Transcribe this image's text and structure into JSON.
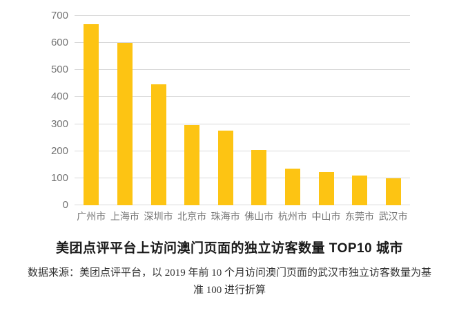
{
  "chart_data": {
    "type": "bar",
    "title": "美团点评平台上访问澳门页面的独立访客数量 TOP10 城市",
    "categories": [
      "广州市",
      "上海市",
      "深圳市",
      "北京市",
      "珠海市",
      "佛山市",
      "杭州市",
      "中山市",
      "东莞市",
      "武汉市"
    ],
    "values": [
      670,
      600,
      448,
      296,
      276,
      205,
      135,
      122,
      110,
      100
    ],
    "xlabel": "",
    "ylabel": "",
    "ylim": [
      0,
      700
    ],
    "ytick_step": 100,
    "grid": true,
    "legend_position": "none",
    "bar_color": "#FDC413"
  },
  "source_note": {
    "line1": "数据来源：美团点评平台，以 2019 年前 10 个月访问澳门页面的武汉市独立访客数量为基",
    "line2": "准 100 进行折算"
  },
  "colors": {
    "bar": "#FDC413",
    "gridline": "#D9D9D9",
    "y_axis_label": "#737373",
    "x_axis_label": "#757575",
    "title": "#1A1A1A",
    "note": "#333333",
    "background": "#FFFFFF"
  }
}
